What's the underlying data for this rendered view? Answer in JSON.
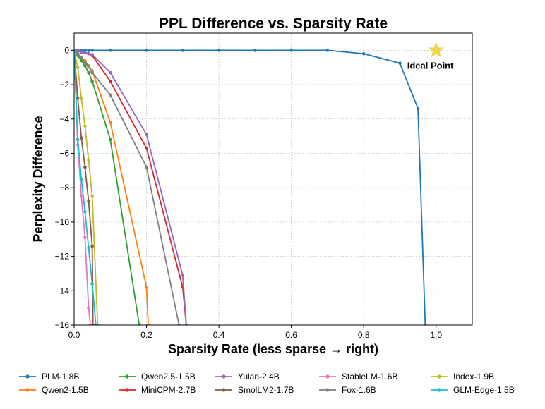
{
  "chart_data": {
    "type": "line",
    "title": "PPL Difference vs. Sparsity Rate",
    "xlabel": "Sparsity Rate (less sparse → right)",
    "ylabel": "Perplexity Difference",
    "xlim": [
      0.0,
      1.1
    ],
    "ylim": [
      -16,
      1
    ],
    "xticks": [
      0.0,
      0.2,
      0.4,
      0.6,
      0.8,
      1.0
    ],
    "xtick_labels": [
      "0.0",
      "0.2",
      "0.4",
      "0.6",
      "0.8",
      "1.0"
    ],
    "yticks": [
      0,
      -2,
      -4,
      -6,
      -8,
      -10,
      -12,
      -14,
      -16
    ],
    "ytick_labels": [
      "0",
      "−2",
      "−4",
      "−6",
      "−8",
      "−10",
      "−12",
      "−14",
      "−16"
    ],
    "grid": true,
    "annotation": {
      "text": "Ideal Point",
      "x": 1.0,
      "y": 0,
      "marker": "star",
      "color": "#f5d547"
    },
    "series": [
      {
        "name": "PLM-1.8B",
        "color": "#1f77b4",
        "x": [
          0.0,
          0.01,
          0.02,
          0.03,
          0.04,
          0.05,
          0.1,
          0.2,
          0.3,
          0.4,
          0.5,
          0.6,
          0.7,
          0.8,
          0.9,
          0.95,
          0.97
        ],
        "y": [
          0,
          0,
          0,
          0,
          0,
          0,
          0,
          0,
          0,
          0,
          0,
          0,
          0,
          -0.2,
          -0.75,
          -3.4,
          -16
        ]
      },
      {
        "name": "Qwen2-1.5B",
        "color": "#ff7f0e",
        "x": [
          0.0,
          0.01,
          0.02,
          0.03,
          0.04,
          0.05,
          0.1,
          0.2,
          0.205
        ],
        "y": [
          0,
          -0.2,
          -0.4,
          -0.6,
          -0.9,
          -1.2,
          -4.2,
          -13.8,
          -16
        ]
      },
      {
        "name": "Qwen2.5-1.5B",
        "color": "#2ca02c",
        "x": [
          0.0,
          0.01,
          0.02,
          0.03,
          0.04,
          0.05,
          0.1,
          0.18
        ],
        "y": [
          0,
          -0.3,
          -0.6,
          -0.9,
          -1.3,
          -1.8,
          -5.2,
          -16
        ]
      },
      {
        "name": "MiniCPM-2.7B",
        "color": "#d62728",
        "x": [
          0.0,
          0.01,
          0.02,
          0.03,
          0.04,
          0.05,
          0.1,
          0.2,
          0.3,
          0.31
        ],
        "y": [
          0,
          -0.05,
          -0.1,
          -0.15,
          -0.2,
          -0.3,
          -1.8,
          -5.7,
          -13.8,
          -16
        ]
      },
      {
        "name": "Yulan-2.4B",
        "color": "#9467bd",
        "x": [
          0.0,
          0.01,
          0.02,
          0.03,
          0.04,
          0.05,
          0.1,
          0.2,
          0.3,
          0.31
        ],
        "y": [
          0,
          -0.05,
          -0.1,
          -0.12,
          -0.18,
          -0.25,
          -1.3,
          -4.9,
          -13.1,
          -16
        ]
      },
      {
        "name": "SmolLM2-1.7B",
        "color": "#8c564b",
        "x": [
          0.0,
          0.01,
          0.02,
          0.03,
          0.04,
          0.05,
          0.052
        ],
        "y": [
          0,
          -2.8,
          -5.1,
          -6.8,
          -8.8,
          -11.4,
          -16
        ]
      },
      {
        "name": "StableLM-1.6B",
        "color": "#e377c2",
        "x": [
          0.0,
          0.01,
          0.02,
          0.03,
          0.04,
          0.045
        ],
        "y": [
          0,
          -5.5,
          -8.5,
          -10.9,
          -15.0,
          -16
        ]
      },
      {
        "name": "Fox-1.6B",
        "color": "#7f7f7f",
        "x": [
          0.0,
          0.01,
          0.02,
          0.03,
          0.04,
          0.05,
          0.1,
          0.2,
          0.29
        ],
        "y": [
          0,
          -0.2,
          -0.45,
          -0.7,
          -0.95,
          -1.3,
          -2.6,
          -6.8,
          -16
        ]
      },
      {
        "name": "Index-1.9B",
        "color": "#bcbd22",
        "x": [
          0.0,
          0.01,
          0.02,
          0.03,
          0.04,
          0.05,
          0.065
        ],
        "y": [
          0,
          -1.0,
          -2.8,
          -4.4,
          -6.4,
          -8.5,
          -16
        ]
      },
      {
        "name": "GLM-Edge-1.5B",
        "color": "#17becf",
        "x": [
          0.0,
          0.01,
          0.02,
          0.03,
          0.04,
          0.05,
          0.06
        ],
        "y": [
          0,
          -5.2,
          -7.5,
          -9.4,
          -11.5,
          -13.6,
          -16
        ]
      }
    ]
  }
}
